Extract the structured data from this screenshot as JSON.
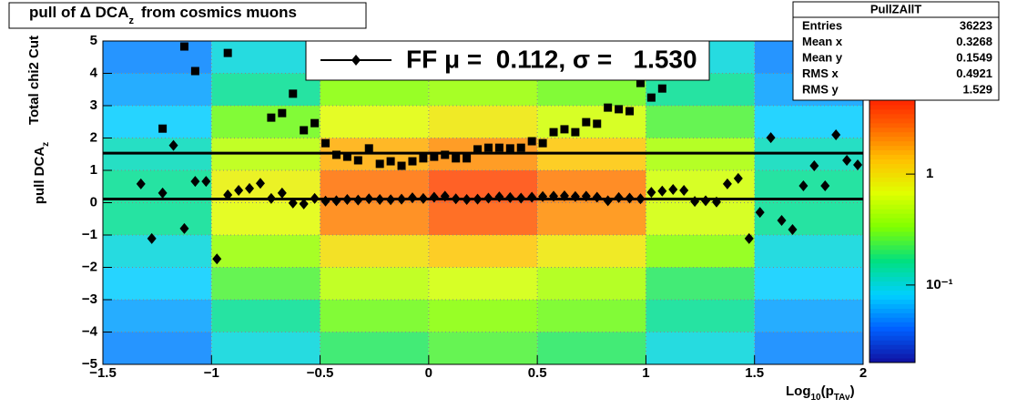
{
  "chart_data": {
    "type": "heatmap",
    "title": {
      "main": "pull of Δ DCA",
      "sub": "z",
      "tail": "from cosmics muons"
    },
    "y_label": {
      "main": "pull DCA",
      "sub": "z",
      "cut": "Total chi2 Cut"
    },
    "x_label": {
      "main": "Log",
      "sub": "10",
      "open": "(p",
      "sub2": "TAv",
      "close": ")"
    },
    "xlim": [
      -1.5,
      2
    ],
    "ylim": [
      -5,
      5
    ],
    "xticks": [
      {
        "value": -1.5,
        "label": "−1.5"
      },
      {
        "value": -1,
        "label": "−1"
      },
      {
        "value": -0.5,
        "label": "−0.5"
      },
      0,
      0.5,
      1,
      1.5,
      2
    ],
    "yticks": [
      {
        "value": -5,
        "label": "−5"
      },
      {
        "value": -4,
        "label": "−4"
      },
      {
        "value": -3,
        "label": "−3"
      },
      {
        "value": -2,
        "label": "−2"
      },
      {
        "value": -1,
        "label": "−1"
      },
      0,
      1,
      2,
      3,
      4,
      5
    ],
    "grid": true,
    "zlim": [
      0.02,
      5.6
    ],
    "zlog": true,
    "zticks": [
      {
        "value": 0.1,
        "label": "10⁻¹"
      },
      1
    ],
    "palette": [
      "#1010a0",
      "#0060ff",
      "#00d0ff",
      "#00e080",
      "#80ff00",
      "#e0ff00",
      "#ffc000",
      "#ff6000",
      "#ff1000"
    ],
    "heatmap": {
      "xbins": [
        -1.5,
        -1,
        -0.5,
        0,
        0.5,
        1,
        1.5,
        2
      ],
      "ybins": [
        -5,
        -4,
        -3,
        -2,
        -1,
        0,
        1,
        2,
        3,
        4,
        5
      ],
      "z": [
        [
          0.05,
          0.1,
          0.2,
          0.25,
          0.2,
          0.1,
          0.05
        ],
        [
          0.06,
          0.15,
          0.3,
          0.35,
          0.3,
          0.15,
          0.06
        ],
        [
          0.08,
          0.25,
          0.5,
          0.6,
          0.45,
          0.2,
          0.08
        ],
        [
          0.1,
          0.4,
          1.0,
          1.3,
          0.9,
          0.35,
          0.1
        ],
        [
          0.15,
          0.7,
          2.2,
          3.0,
          2.0,
          0.6,
          0.15
        ],
        [
          0.15,
          0.8,
          2.5,
          3.5,
          2.3,
          0.6,
          0.15
        ],
        [
          0.12,
          0.5,
          1.6,
          2.0,
          1.3,
          0.45,
          0.12
        ],
        [
          0.08,
          0.3,
          0.7,
          0.9,
          0.6,
          0.25,
          0.08
        ],
        [
          0.06,
          0.15,
          0.35,
          0.4,
          0.3,
          0.15,
          0.06
        ],
        [
          0.05,
          0.1,
          0.2,
          0.25,
          0.2,
          0.1,
          0.05
        ]
      ]
    },
    "x": [
      -1.325,
      -1.275,
      -1.225,
      -1.175,
      -1.125,
      -1.075,
      -1.025,
      -0.975,
      -0.925,
      -0.875,
      -0.825,
      -0.775,
      -0.725,
      -0.675,
      -0.625,
      -0.575,
      -0.525,
      -0.475,
      -0.425,
      -0.375,
      -0.325,
      -0.275,
      -0.225,
      -0.175,
      -0.125,
      -0.075,
      -0.025,
      0.025,
      0.075,
      0.125,
      0.175,
      0.225,
      0.275,
      0.325,
      0.375,
      0.425,
      0.475,
      0.525,
      0.575,
      0.625,
      0.675,
      0.725,
      0.775,
      0.825,
      0.875,
      0.925,
      0.975,
      1.025,
      1.075,
      1.125,
      1.175,
      1.225,
      1.275,
      1.325,
      1.375,
      1.425,
      1.475,
      1.525,
      1.575,
      1.625,
      1.675,
      1.725,
      1.775,
      1.825,
      1.875,
      1.925,
      1.975
    ],
    "series": [
      {
        "marker": "diamond",
        "color": "#000000",
        "values": [
          0.58,
          -1.11,
          0.3,
          1.77,
          -0.8,
          0.66,
          0.66,
          -1.74,
          0.24,
          0.38,
          0.44,
          0.6,
          0.13,
          0.3,
          -0.01,
          -0.04,
          0.13,
          0.05,
          0.06,
          0.1,
          0.08,
          0.12,
          0.1,
          0.09,
          0.11,
          0.15,
          0.13,
          0.17,
          0.2,
          0.12,
          0.1,
          0.11,
          0.14,
          0.18,
          0.16,
          0.14,
          0.17,
          0.19,
          0.2,
          0.21,
          0.19,
          0.2,
          0.17,
          0.06,
          0.16,
          0.14,
          0.12,
          0.32,
          0.36,
          0.41,
          0.38,
          0.04,
          0.06,
          0.02,
          0.58,
          0.75,
          -1.11,
          -0.3,
          2.01,
          -0.55,
          -0.83,
          0.52,
          1.14,
          0.52,
          2.1,
          1.31,
          1.17
        ]
      },
      {
        "marker": "square",
        "color": "#000000",
        "values": [
          null,
          null,
          2.29,
          null,
          4.83,
          4.07,
          null,
          null,
          4.63,
          null,
          null,
          null,
          2.63,
          2.77,
          3.37,
          2.24,
          2.46,
          1.84,
          1.48,
          1.42,
          1.31,
          1.68,
          1.2,
          1.28,
          1.14,
          1.28,
          1.37,
          1.42,
          1.48,
          1.37,
          1.37,
          1.65,
          1.7,
          1.7,
          1.68,
          1.7,
          1.9,
          1.84,
          2.18,
          2.27,
          2.18,
          2.49,
          2.44,
          2.94,
          2.89,
          2.83,
          3.7,
          3.25,
          3.53,
          null,
          null,
          null,
          null,
          null,
          null,
          null,
          null,
          null,
          null,
          null,
          null,
          null,
          null,
          null,
          null,
          null,
          null
        ]
      }
    ],
    "hlines": [
      0.112,
      1.53
    ],
    "legend": "FF μ =  0.112, σ =   1.530",
    "stats": {
      "name": "PullZAllT",
      "rows": [
        [
          "Entries",
          36223
        ],
        [
          "Mean x",
          0.3268
        ],
        [
          "Mean y",
          0.1549
        ],
        [
          "RMS x",
          0.4921
        ],
        [
          "RMS y",
          1.529
        ]
      ]
    }
  }
}
